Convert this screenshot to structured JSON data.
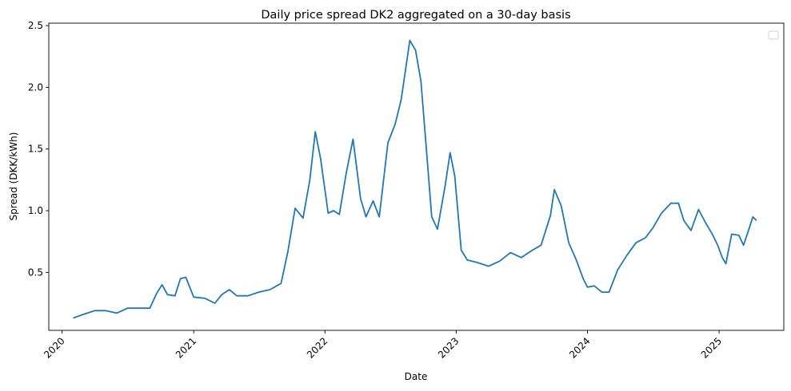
{
  "chart_data": {
    "type": "line",
    "title": "Daily price spread DK2 aggregated on a 30-day basis",
    "xlabel": "Date",
    "ylabel": "Spread (DKK/kWh)",
    "x_ticks": [
      "2020",
      "2021",
      "2022",
      "2023",
      "2024",
      "2025"
    ],
    "y_ticks": [
      "0.5",
      "1.0",
      "1.5",
      "2.0",
      "2.5"
    ],
    "xlim": [
      "2019-11-25",
      "2025-06-30"
    ],
    "ylim": [
      0.03,
      2.52
    ],
    "grid": false,
    "legend": "top-right (empty)",
    "series": [
      {
        "color": "#1f77b4",
        "points": [
          [
            "2020-02-01",
            0.13
          ],
          [
            "2020-03-01",
            0.16
          ],
          [
            "2020-04-01",
            0.19
          ],
          [
            "2020-05-01",
            0.19
          ],
          [
            "2020-06-01",
            0.17
          ],
          [
            "2020-07-01",
            0.21
          ],
          [
            "2020-08-01",
            0.21
          ],
          [
            "2020-09-01",
            0.21
          ],
          [
            "2020-09-20",
            0.33
          ],
          [
            "2020-10-05",
            0.4
          ],
          [
            "2020-10-20",
            0.32
          ],
          [
            "2020-11-10",
            0.31
          ],
          [
            "2020-11-25",
            0.45
          ],
          [
            "2020-12-10",
            0.46
          ],
          [
            "2021-01-01",
            0.3
          ],
          [
            "2021-02-01",
            0.29
          ],
          [
            "2021-03-01",
            0.25
          ],
          [
            "2021-03-20",
            0.32
          ],
          [
            "2021-04-10",
            0.36
          ],
          [
            "2021-05-01",
            0.31
          ],
          [
            "2021-06-01",
            0.31
          ],
          [
            "2021-07-01",
            0.34
          ],
          [
            "2021-08-01",
            0.36
          ],
          [
            "2021-09-01",
            0.41
          ],
          [
            "2021-09-20",
            0.67
          ],
          [
            "2021-10-10",
            1.02
          ],
          [
            "2021-11-01",
            0.94
          ],
          [
            "2021-11-20",
            1.25
          ],
          [
            "2021-12-05",
            1.64
          ],
          [
            "2021-12-20",
            1.42
          ],
          [
            "2022-01-10",
            0.98
          ],
          [
            "2022-01-25",
            1.0
          ],
          [
            "2022-02-10",
            0.97
          ],
          [
            "2022-03-01",
            1.3
          ],
          [
            "2022-03-20",
            1.58
          ],
          [
            "2022-04-10",
            1.1
          ],
          [
            "2022-04-25",
            0.95
          ],
          [
            "2022-05-15",
            1.08
          ],
          [
            "2022-06-01",
            0.95
          ],
          [
            "2022-06-25",
            1.55
          ],
          [
            "2022-07-15",
            1.7
          ],
          [
            "2022-08-01",
            1.9
          ],
          [
            "2022-08-25",
            2.38
          ],
          [
            "2022-09-10",
            2.3
          ],
          [
            "2022-09-25",
            2.05
          ],
          [
            "2022-10-10",
            1.5
          ],
          [
            "2022-10-25",
            0.95
          ],
          [
            "2022-11-10",
            0.85
          ],
          [
            "2022-12-01",
            1.2
          ],
          [
            "2022-12-15",
            1.47
          ],
          [
            "2022-12-28",
            1.28
          ],
          [
            "2023-01-15",
            0.68
          ],
          [
            "2023-02-01",
            0.6
          ],
          [
            "2023-03-01",
            0.58
          ],
          [
            "2023-04-01",
            0.55
          ],
          [
            "2023-05-01",
            0.59
          ],
          [
            "2023-06-01",
            0.66
          ],
          [
            "2023-07-01",
            0.62
          ],
          [
            "2023-08-01",
            0.68
          ],
          [
            "2023-08-25",
            0.72
          ],
          [
            "2023-09-20",
            0.96
          ],
          [
            "2023-10-01",
            1.17
          ],
          [
            "2023-10-20",
            1.04
          ],
          [
            "2023-11-10",
            0.74
          ],
          [
            "2023-12-01",
            0.6
          ],
          [
            "2023-12-20",
            0.45
          ],
          [
            "2024-01-01",
            0.38
          ],
          [
            "2024-01-20",
            0.39
          ],
          [
            "2024-02-10",
            0.34
          ],
          [
            "2024-03-01",
            0.34
          ],
          [
            "2024-03-25",
            0.52
          ],
          [
            "2024-04-20",
            0.64
          ],
          [
            "2024-05-15",
            0.74
          ],
          [
            "2024-06-10",
            0.78
          ],
          [
            "2024-07-01",
            0.86
          ],
          [
            "2024-07-25",
            0.98
          ],
          [
            "2024-08-20",
            1.06
          ],
          [
            "2024-09-10",
            1.06
          ],
          [
            "2024-09-25",
            0.92
          ],
          [
            "2024-10-15",
            0.84
          ],
          [
            "2024-11-05",
            1.01
          ],
          [
            "2024-11-25",
            0.9
          ],
          [
            "2024-12-15",
            0.8
          ],
          [
            "2024-12-28",
            0.72
          ],
          [
            "2025-01-10",
            0.62
          ],
          [
            "2025-01-20",
            0.57
          ],
          [
            "2025-02-05",
            0.81
          ],
          [
            "2025-02-25",
            0.8
          ],
          [
            "2025-03-10",
            0.72
          ],
          [
            "2025-03-25",
            0.85
          ],
          [
            "2025-04-05",
            0.95
          ],
          [
            "2025-04-15",
            0.92
          ]
        ]
      }
    ]
  }
}
